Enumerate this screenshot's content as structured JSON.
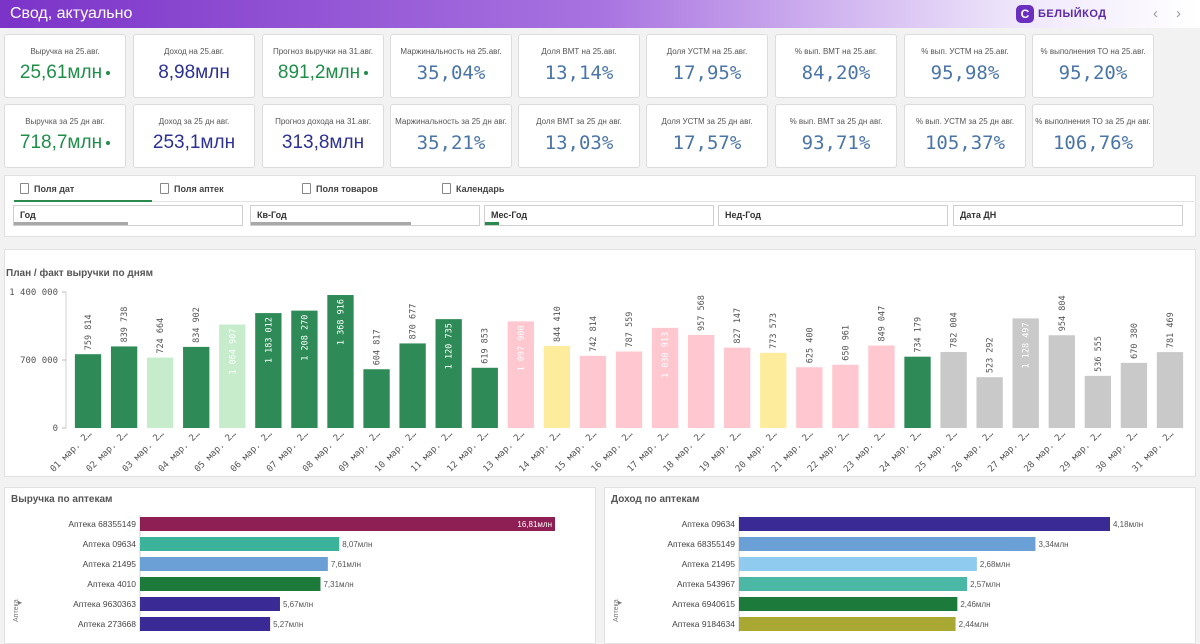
{
  "header": {
    "title": "Свод, актуально",
    "logo_text": "БЕЛЫЙКОД",
    "logo_mark": "С",
    "prev_arrow": "‹",
    "next_arrow": "›"
  },
  "kpis": [
    [
      {
        "label": "Выручка на 25.авг.",
        "value": "25,61млн",
        "dot": true,
        "style": "green-sans"
      },
      {
        "label": "Доход на 25.авг.",
        "value": "8,98млн",
        "dot": false,
        "style": "navy-sans"
      },
      {
        "label": "Прогноз выручки на 31.авг.",
        "value": "891,2млн",
        "dot": true,
        "style": "green-sans"
      },
      {
        "label": "Маржинальность на 25.авг.",
        "value": "35,04%",
        "dot": false,
        "style": "blue-mono"
      },
      {
        "label": "Доля ВМТ на 25.авг.",
        "value": "13,14%",
        "dot": false,
        "style": "blue-mono"
      },
      {
        "label": "Доля УСТМ на 25.авг.",
        "value": "17,95%",
        "dot": false,
        "style": "blue-mono"
      },
      {
        "label": "% вып. ВМТ на 25.авг.",
        "value": "84,20%",
        "dot": false,
        "style": "blue-mono"
      },
      {
        "label": "% вып. УСТМ на 25.авг.",
        "value": "95,98%",
        "dot": false,
        "style": "blue-mono"
      },
      {
        "label": "% выполнения ТО на 25.авг.",
        "value": "95,20%",
        "dot": false,
        "style": "blue-mono"
      }
    ],
    [
      {
        "label": "Выручка за 25 дн авг.",
        "value": "718,7млн",
        "dot": true,
        "style": "green-sans"
      },
      {
        "label": "Доход за 25 дн авг.",
        "value": "253,1млн",
        "dot": false,
        "style": "navy-sans"
      },
      {
        "label": "Прогноз дохода на 31.авг.",
        "value": "313,8млн",
        "dot": false,
        "style": "navy-sans"
      },
      {
        "label": "Маржинальность за 25 дн авг.",
        "value": "35,21%",
        "dot": false,
        "style": "blue-mono"
      },
      {
        "label": "Доля ВМТ за 25 дн авг.",
        "value": "13,03%",
        "dot": false,
        "style": "blue-mono"
      },
      {
        "label": "Доля УСТМ за 25 дн авг.",
        "value": "17,57%",
        "dot": false,
        "style": "blue-mono"
      },
      {
        "label": "% вып. ВМТ за 25 дн авг.",
        "value": "93,71%",
        "dot": false,
        "style": "blue-mono"
      },
      {
        "label": "% вып. УСТМ за 25 дн авг.",
        "value": "105,37%",
        "dot": false,
        "style": "blue-mono"
      },
      {
        "label": "% выполнения ТО за 25 дн авг.",
        "value": "106,76%",
        "dot": false,
        "style": "blue-mono"
      }
    ]
  ],
  "filter_tabs": [
    "Поля дат",
    "Поля аптек",
    "Поля товаров",
    "Календарь"
  ],
  "filter_boxes": [
    {
      "label": "Год",
      "fill": 0.5,
      "color": "gray"
    },
    {
      "label": "Кв-Год",
      "fill": 0.7,
      "color": "gray"
    },
    {
      "label": "Мес-Год",
      "fill": 0.06,
      "color": "green"
    },
    {
      "label": "Нед-Год",
      "fill": 0.0,
      "color": "gray"
    },
    {
      "label": "Дата ДН",
      "fill": 0.0,
      "color": "gray"
    }
  ],
  "colors": {
    "green_dark": "#2e8b57",
    "green_light": "#c6eccc",
    "pink": "#ffc7cf",
    "yellow": "#fcec9c",
    "gray": "#c9c9c9",
    "kpi_green": "#1f8e4a",
    "kpi_navy": "#2d3192",
    "kpi_blue": "#4a75a7"
  },
  "chart_data": [
    {
      "type": "bar",
      "title": "План / факт выручки по дням",
      "ylim": [
        0,
        1400000
      ],
      "yticks": [
        0,
        700000,
        1400000
      ],
      "ytick_labels": [
        "0",
        "700 000",
        "1 400 000"
      ],
      "categories": [
        "01 мар. 2…",
        "02 мар. 2…",
        "03 мар. 2…",
        "04 мар. 2…",
        "05 мар. 2…",
        "06 мар. 2…",
        "07 мар. 2…",
        "08 мар. 2…",
        "09 мар. 2…",
        "10 мар. 2…",
        "11 мар. 2…",
        "12 мар. 2…",
        "13 мар. 2…",
        "14 мар. 2…",
        "15 мар. 2…",
        "16 мар. 2…",
        "17 мар. 2…",
        "18 мар. 2…",
        "19 мар. 2…",
        "20 мар. 2…",
        "21 мар. 2…",
        "22 мар. 2…",
        "23 мар. 2…",
        "24 мар. 2…",
        "25 мар. 2…",
        "26 мар. 2…",
        "27 мар. 2…",
        "28 мар. 2…",
        "29 мар. 2…",
        "30 мар. 2…",
        "31 мар. 2…"
      ],
      "values": [
        759814,
        839738,
        724664,
        834902,
        1064907,
        1183012,
        1208270,
        1368916,
        604817,
        870677,
        1120735,
        619853,
        1097900,
        844410,
        742814,
        787559,
        1030913,
        957568,
        827147,
        773573,
        625400,
        650961,
        849047,
        734179,
        782004,
        523292,
        1128497,
        954804,
        536555,
        670380,
        781469
      ],
      "labels": [
        "759 814",
        "839 738",
        "724 664",
        "834 902",
        "1 064 907",
        "1 183 012",
        "1 208 270",
        "1 368 916",
        "604 817",
        "870 677",
        "1 120 735",
        "619 853",
        "1 097 900",
        "844 410",
        "742 814",
        "787 559",
        "1 030 913",
        "957 568",
        "827 147",
        "773 573",
        "625 400",
        "650 961",
        "849 047",
        "734 179",
        "782 004",
        "523 292",
        "1 128 497",
        "954 804",
        "536 555",
        "670 380",
        "781 469"
      ],
      "bar_colors": [
        "green_dark",
        "green_dark",
        "green_light",
        "green_dark",
        "green_light",
        "green_dark",
        "green_dark",
        "green_dark",
        "green_dark",
        "green_dark",
        "green_dark",
        "green_dark",
        "pink",
        "yellow",
        "pink",
        "pink",
        "pink",
        "pink",
        "pink",
        "yellow",
        "pink",
        "pink",
        "pink",
        "green_dark",
        "gray",
        "gray",
        "gray",
        "gray",
        "gray",
        "gray",
        "gray"
      ],
      "label_inside": [
        false,
        false,
        false,
        false,
        true,
        true,
        true,
        true,
        false,
        false,
        true,
        false,
        true,
        false,
        false,
        false,
        true,
        false,
        false,
        false,
        false,
        false,
        false,
        false,
        false,
        false,
        true,
        false,
        false,
        false,
        false
      ]
    },
    {
      "type": "bar",
      "title": "Выручка по аптекам",
      "orientation": "horizontal",
      "xlim": [
        0,
        16.81
      ],
      "categories": [
        "Аптека 68355149",
        "Аптека 09634",
        "Аптека 21495",
        "Аптека 4010",
        "Аптека 9630363",
        "Аптека 273668"
      ],
      "values": [
        16.81,
        8.07,
        7.61,
        7.31,
        5.67,
        5.27
      ],
      "labels": [
        "16,81млн",
        "8,07млн",
        "7,61млн",
        "7,31млн",
        "5,67млн",
        "5,27млн"
      ],
      "bar_colors": [
        "#8e1f55",
        "#3bb39a",
        "#6ba0d6",
        "#1c7a3b",
        "#3a2a96",
        "#3a2a96"
      ],
      "label_inside": [
        true,
        false,
        false,
        false,
        false,
        false
      ]
    },
    {
      "type": "bar",
      "title": "Доход по аптекам",
      "orientation": "horizontal",
      "xlim": [
        0,
        4.18
      ],
      "categories": [
        "Аптека 09634",
        "Аптека 68355149",
        "Аптека 21495",
        "Аптека 543967",
        "Аптека 6940615",
        "Аптека 9184634"
      ],
      "values": [
        4.18,
        3.34,
        2.68,
        2.57,
        2.46,
        2.44
      ],
      "labels": [
        "4,18млн",
        "3,34млн",
        "2,68млн",
        "2,57млн",
        "2,46млн",
        "2,44млн"
      ],
      "bar_colors": [
        "#3a2a96",
        "#6ba0d6",
        "#8fcbee",
        "#4bb8a6",
        "#1c7a3b",
        "#a8a832"
      ],
      "label_inside": [
        false,
        false,
        false,
        false,
        false,
        false
      ]
    }
  ],
  "side_labels": {
    "left": "Аптека",
    "right": "Аптека",
    "arrow": "▸"
  }
}
